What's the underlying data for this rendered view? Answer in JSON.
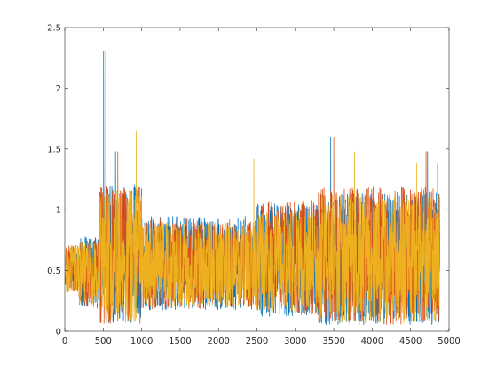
{
  "chart_data": {
    "type": "line",
    "title": "",
    "xlabel": "",
    "ylabel": "",
    "xlim": [
      0,
      5000
    ],
    "ylim": [
      0,
      2.5
    ],
    "xticks": [
      0,
      500,
      1000,
      1500,
      2000,
      2500,
      3000,
      3500,
      4000,
      4500,
      5000
    ],
    "xtick_labels": [
      "0",
      "500",
      "1000",
      "1500",
      "2000",
      "2500",
      "3000",
      "3500",
      "4000",
      "4500",
      "5000"
    ],
    "yticks": [
      0,
      0.5,
      1,
      1.5,
      2,
      2.5
    ],
    "ytick_labels": [
      "0",
      "0.5",
      "1",
      "1.5",
      "2",
      "2.5"
    ],
    "grid": false,
    "legend": "none",
    "series": [
      {
        "color": "#0072BD",
        "x_range": [
          1,
          4880
        ],
        "segments": [
          {
            "x": [
              0,
              180
            ],
            "low": 0.32,
            "high": 0.71
          },
          {
            "x": [
              180,
              450
            ],
            "low": 0.18,
            "high": 0.78
          },
          {
            "x": [
              450,
              1000
            ],
            "low": 0.05,
            "high": 1.22
          },
          {
            "x": [
              1000,
              2500
            ],
            "low": 0.17,
            "high": 0.95
          },
          {
            "x": [
              2500,
              3300
            ],
            "low": 0.12,
            "high": 1.05
          },
          {
            "x": [
              3300,
              4880
            ],
            "low": 0.05,
            "high": 1.15
          }
        ],
        "peaks": [
          {
            "x": 505,
            "y": 2.31
          },
          {
            "x": 660,
            "y": 1.48
          },
          {
            "x": 3460,
            "y": 1.6
          },
          {
            "x": 4720,
            "y": 1.48
          }
        ]
      },
      {
        "color": "#D95319",
        "x_range": [
          1,
          4880
        ],
        "segments": [
          {
            "x": [
              0,
              180
            ],
            "low": 0.32,
            "high": 0.71
          },
          {
            "x": [
              180,
              450
            ],
            "low": 0.2,
            "high": 0.76
          },
          {
            "x": [
              450,
              1000
            ],
            "low": 0.06,
            "high": 1.2
          },
          {
            "x": [
              1000,
              2500
            ],
            "low": 0.18,
            "high": 0.93
          },
          {
            "x": [
              2500,
              3300
            ],
            "low": 0.13,
            "high": 1.08
          },
          {
            "x": [
              3300,
              4880
            ],
            "low": 0.05,
            "high": 1.2
          }
        ],
        "peaks": [
          {
            "x": 690,
            "y": 1.48
          },
          {
            "x": 3500,
            "y": 1.6
          },
          {
            "x": 4700,
            "y": 1.48
          },
          {
            "x": 4850,
            "y": 1.38
          }
        ]
      },
      {
        "color": "#EDB120",
        "x_range": [
          1,
          4880
        ],
        "segments": [
          {
            "x": [
              0,
              180
            ],
            "low": 0.32,
            "high": 0.71
          },
          {
            "x": [
              180,
              450
            ],
            "low": 0.22,
            "high": 0.75
          },
          {
            "x": [
              450,
              1000
            ],
            "low": 0.07,
            "high": 1.18
          },
          {
            "x": [
              1000,
              2500
            ],
            "low": 0.2,
            "high": 0.9
          },
          {
            "x": [
              2500,
              3300
            ],
            "low": 0.15,
            "high": 1.0
          },
          {
            "x": [
              3300,
              4880
            ],
            "low": 0.06,
            "high": 1.12
          }
        ],
        "peaks": [
          {
            "x": 530,
            "y": 2.31
          },
          {
            "x": 930,
            "y": 1.65
          },
          {
            "x": 2460,
            "y": 1.42
          },
          {
            "x": 3770,
            "y": 1.48
          },
          {
            "x": 4580,
            "y": 1.38
          }
        ]
      }
    ]
  }
}
